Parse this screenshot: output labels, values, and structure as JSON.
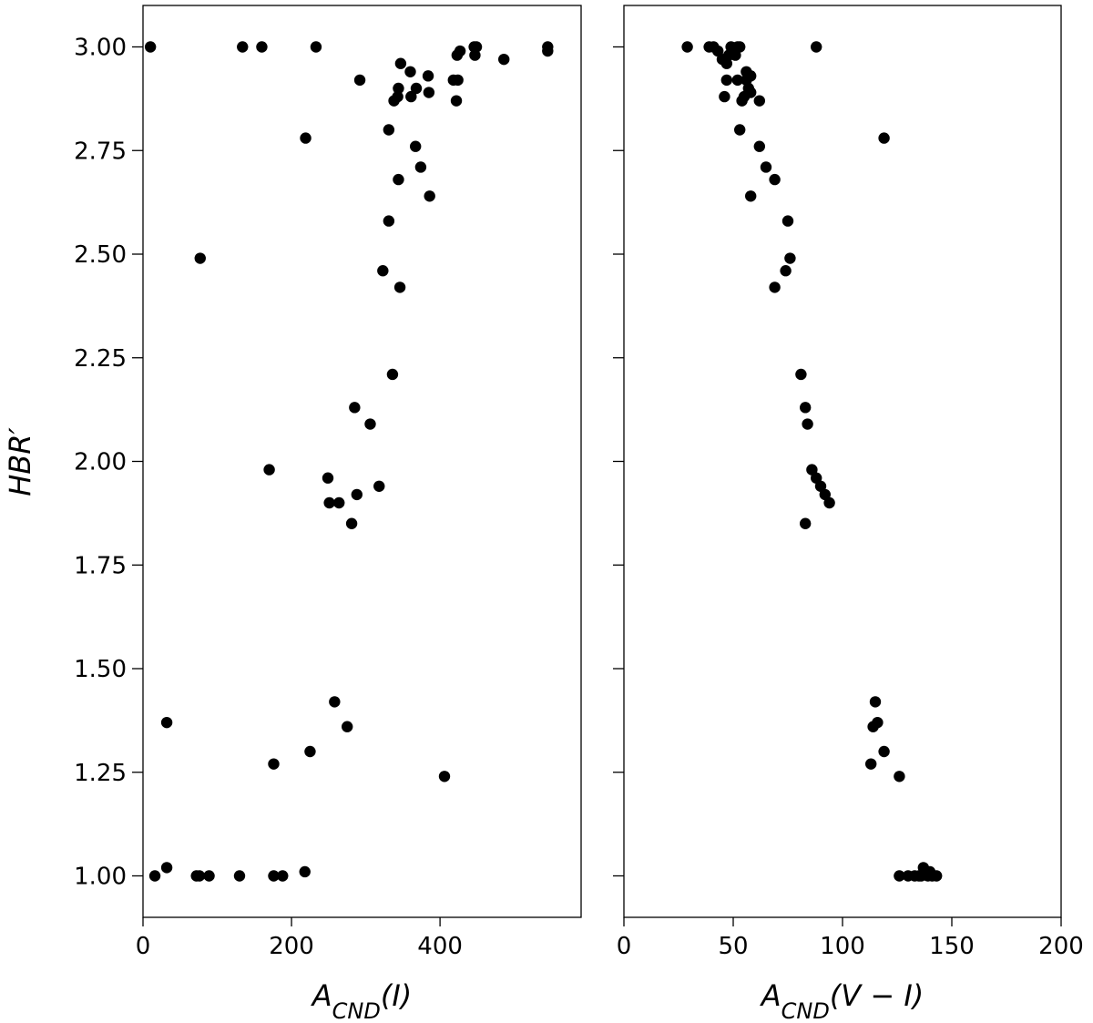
{
  "chart_data": [
    {
      "type": "scatter",
      "panel": "left",
      "xlabel": "A_CND(I)",
      "ylabel": "HBR′",
      "xlim": [
        0,
        590
      ],
      "ylim": [
        0.9,
        3.1
      ],
      "xticks": [
        0,
        200,
        400
      ],
      "yticks": [
        1.0,
        1.25,
        1.5,
        1.75,
        2.0,
        2.25,
        2.5,
        2.75,
        3.0
      ],
      "grid": false,
      "points": [
        [
          10,
          3.0
        ],
        [
          134,
          3.0
        ],
        [
          160,
          3.0
        ],
        [
          233,
          3.0
        ],
        [
          446,
          3.0
        ],
        [
          449,
          3.0
        ],
        [
          545,
          3.0
        ],
        [
          545,
          2.99
        ],
        [
          427,
          2.99
        ],
        [
          423,
          2.98
        ],
        [
          447,
          2.98
        ],
        [
          486,
          2.97
        ],
        [
          347,
          2.96
        ],
        [
          360,
          2.94
        ],
        [
          384,
          2.93
        ],
        [
          292,
          2.92
        ],
        [
          418,
          2.92
        ],
        [
          424,
          2.92
        ],
        [
          344,
          2.9
        ],
        [
          368,
          2.9
        ],
        [
          385,
          2.89
        ],
        [
          343,
          2.88
        ],
        [
          361,
          2.88
        ],
        [
          338,
          2.87
        ],
        [
          422,
          2.87
        ],
        [
          331,
          2.8
        ],
        [
          219,
          2.78
        ],
        [
          367,
          2.76
        ],
        [
          374,
          2.71
        ],
        [
          344,
          2.68
        ],
        [
          386,
          2.64
        ],
        [
          331,
          2.58
        ],
        [
          77,
          2.49
        ],
        [
          323,
          2.46
        ],
        [
          346,
          2.42
        ],
        [
          336,
          2.21
        ],
        [
          285,
          2.13
        ],
        [
          306,
          2.09
        ],
        [
          170,
          1.98
        ],
        [
          249,
          1.96
        ],
        [
          318,
          1.94
        ],
        [
          288,
          1.92
        ],
        [
          251,
          1.9
        ],
        [
          264,
          1.9
        ],
        [
          281,
          1.85
        ],
        [
          258,
          1.42
        ],
        [
          32,
          1.37
        ],
        [
          275,
          1.36
        ],
        [
          225,
          1.3
        ],
        [
          176,
          1.27
        ],
        [
          406,
          1.24
        ],
        [
          32,
          1.02
        ],
        [
          218,
          1.01
        ],
        [
          16,
          1.0
        ],
        [
          72,
          1.0
        ],
        [
          76,
          1.0
        ],
        [
          89,
          1.0
        ],
        [
          130,
          1.0
        ],
        [
          176,
          1.0
        ],
        [
          188,
          1.0
        ]
      ]
    },
    {
      "type": "scatter",
      "panel": "right",
      "xlabel": "A_CND(V − I)",
      "ylabel": "",
      "xlim": [
        0,
        200
      ],
      "ylim": [
        0.9,
        3.1
      ],
      "xticks": [
        0,
        50,
        100,
        150,
        200
      ],
      "yticks": [
        1.0,
        1.25,
        1.5,
        1.75,
        2.0,
        2.25,
        2.5,
        2.75,
        3.0
      ],
      "grid": false,
      "points": [
        [
          29,
          3.0
        ],
        [
          39,
          3.0
        ],
        [
          41,
          3.0
        ],
        [
          49,
          3.0
        ],
        [
          52,
          3.0
        ],
        [
          53,
          3.0
        ],
        [
          88,
          3.0
        ],
        [
          43,
          2.99
        ],
        [
          48,
          2.98
        ],
        [
          51,
          2.98
        ],
        [
          45,
          2.97
        ],
        [
          47,
          2.96
        ],
        [
          56,
          2.94
        ],
        [
          58,
          2.93
        ],
        [
          47,
          2.92
        ],
        [
          52,
          2.92
        ],
        [
          56,
          2.92
        ],
        [
          57,
          2.9
        ],
        [
          58,
          2.89
        ],
        [
          46,
          2.88
        ],
        [
          55,
          2.88
        ],
        [
          54,
          2.87
        ],
        [
          62,
          2.87
        ],
        [
          53,
          2.8
        ],
        [
          119,
          2.78
        ],
        [
          62,
          2.76
        ],
        [
          65,
          2.71
        ],
        [
          69,
          2.68
        ],
        [
          58,
          2.64
        ],
        [
          75,
          2.58
        ],
        [
          76,
          2.49
        ],
        [
          74,
          2.46
        ],
        [
          69,
          2.42
        ],
        [
          81,
          2.21
        ],
        [
          83,
          2.13
        ],
        [
          84,
          2.09
        ],
        [
          86,
          1.98
        ],
        [
          88,
          1.96
        ],
        [
          90,
          1.94
        ],
        [
          92,
          1.92
        ],
        [
          94,
          1.9
        ],
        [
          83,
          1.85
        ],
        [
          115,
          1.42
        ],
        [
          116,
          1.37
        ],
        [
          114,
          1.36
        ],
        [
          119,
          1.3
        ],
        [
          113,
          1.27
        ],
        [
          126,
          1.24
        ],
        [
          137,
          1.02
        ],
        [
          138,
          1.01
        ],
        [
          140,
          1.01
        ],
        [
          126,
          1.0
        ],
        [
          130,
          1.0
        ],
        [
          133,
          1.0
        ],
        [
          135,
          1.0
        ],
        [
          136,
          1.0
        ],
        [
          139,
          1.0
        ],
        [
          141,
          1.0
        ],
        [
          143,
          1.0
        ]
      ]
    }
  ]
}
